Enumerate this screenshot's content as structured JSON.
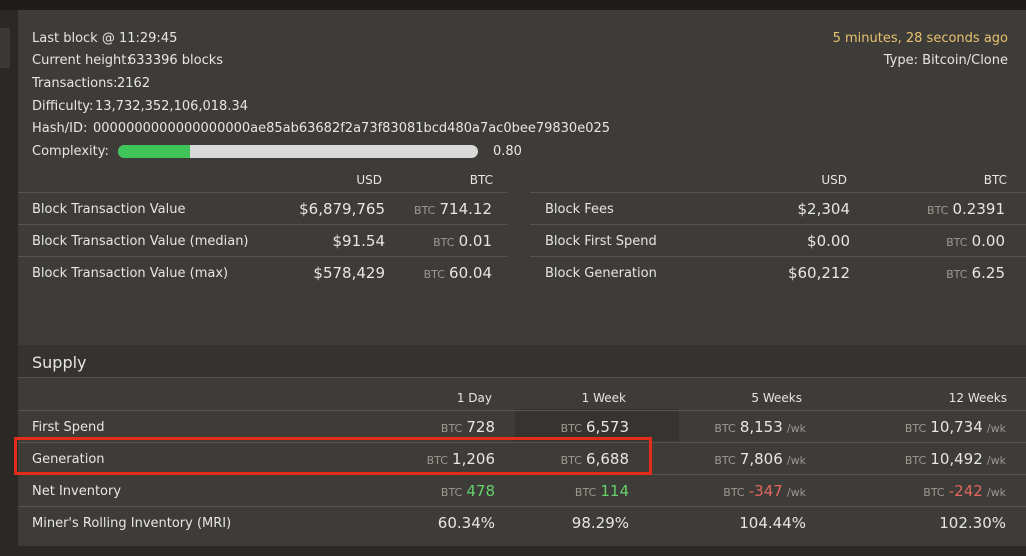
{
  "block": {
    "last_block_label": "Last block @ 11:29:45",
    "height_label": "Current height:",
    "height_value": "633396 blocks",
    "tx_label": "Transactions:",
    "tx_value": "2162",
    "difficulty_label": "Difficulty:",
    "difficulty_value": "13,732,352,106,018.34",
    "hash_label": "Hash/ID:",
    "hash_value": "0000000000000000000ae85ab63682f2a73f83081bcd480a7ac0bee79830e025",
    "complexity_label": "Complexity:",
    "complexity_value": "0.80",
    "complexity_fraction": 0.2,
    "ago": "5 minutes, 28 seconds ago",
    "type_label": "Type:",
    "type_value": "Bitcoin/Clone"
  },
  "left_table": {
    "col_usd": "USD",
    "col_btc": "BTC",
    "rows": [
      {
        "label": "Block Transaction Value",
        "usd": "$6,879,765",
        "btc_unit": "BTC",
        "btc": "714.12"
      },
      {
        "label": "Block Transaction Value (median)",
        "usd": "$91.54",
        "btc_unit": "BTC",
        "btc": "0.01"
      },
      {
        "label": "Block Transaction Value (max)",
        "usd": "$578,429",
        "btc_unit": "BTC",
        "btc": "60.04"
      }
    ]
  },
  "right_table": {
    "col_usd": "USD",
    "col_btc": "BTC",
    "rows": [
      {
        "label": "Block Fees",
        "usd": "$2,304",
        "btc_unit": "BTC",
        "btc": "0.2391"
      },
      {
        "label": "Block First Spend",
        "usd": "$0.00",
        "btc_unit": "BTC",
        "btc": "0.00"
      },
      {
        "label": "Block Generation",
        "usd": "$60,212",
        "btc_unit": "BTC",
        "btc": "6.25"
      }
    ]
  },
  "supply": {
    "title": "Supply",
    "cols": [
      "1 Day",
      "1 Week",
      "5 Weeks",
      "12 Weeks"
    ],
    "unit": "BTC",
    "per_wk": "/wk",
    "rows": [
      {
        "label": "First Spend",
        "d1": "728",
        "w1": "6,573",
        "w5": "8,153",
        "w12": "10,734"
      },
      {
        "label": "Generation",
        "d1": "1,206",
        "w1": "6,688",
        "w5": "7,806",
        "w12": "10,492"
      },
      {
        "label": "Net Inventory",
        "d1": "478",
        "w1": "114",
        "w5": "-347",
        "w12": "-242"
      },
      {
        "label": "Miner's Rolling Inventory (MRI)",
        "d1": "60.34%",
        "w1": "98.29%",
        "w5": "104.44%",
        "w12": "102.30%"
      }
    ]
  },
  "colors": {
    "positive": "#67d06b",
    "negative": "#e0665f",
    "timestamp": "#e8c16e",
    "highlight": "#e02e1a",
    "complexity_fill": "#3fc45a"
  }
}
